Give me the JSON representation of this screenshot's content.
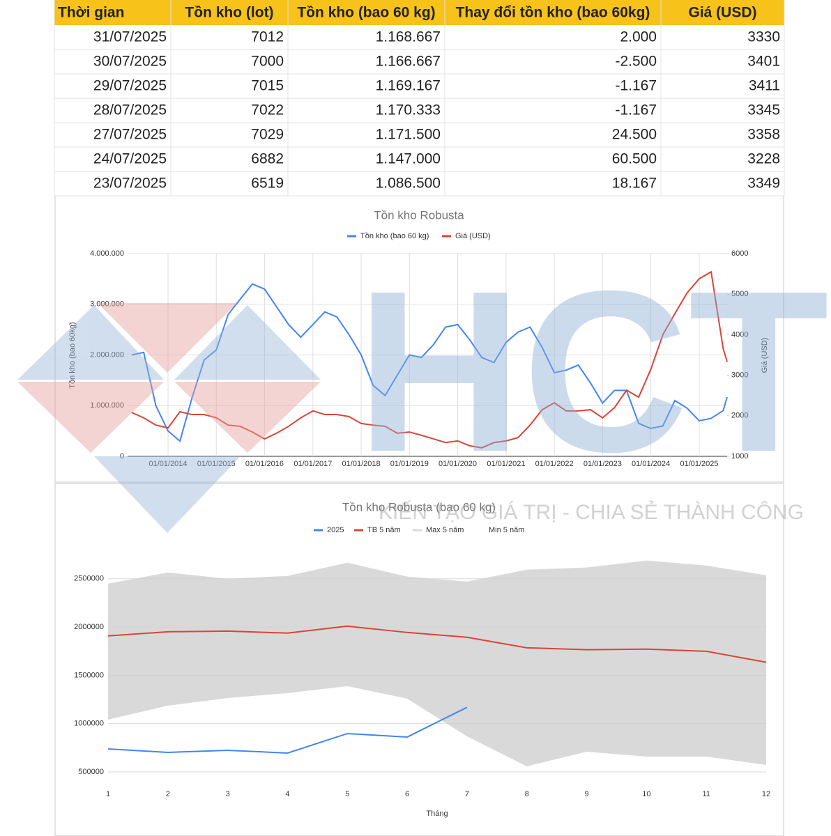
{
  "table": {
    "header": [
      "Thời gian",
      "Tồn kho (lot)",
      "Tồn kho (bao 60 kg)",
      "Thay đổi tồn kho (bao 60kg)",
      "Giá (USD)"
    ],
    "rows": [
      [
        "31/07/2025",
        "7012",
        "1.168.667",
        "2.000",
        "3330"
      ],
      [
        "30/07/2025",
        "7000",
        "1.166.667",
        "-2.500",
        "3401"
      ],
      [
        "29/07/2025",
        "7015",
        "1.169.167",
        "-1.167",
        "3411"
      ],
      [
        "28/07/2025",
        "7022",
        "1.170.333",
        "-1.167",
        "3345"
      ],
      [
        "27/07/2025",
        "7029",
        "1.171.500",
        "24.500",
        "3358"
      ],
      [
        "24/07/2025",
        "6882",
        "1.147.000",
        "60.500",
        "3228"
      ],
      [
        "23/07/2025",
        "6519",
        "1.086.500",
        "18.167",
        "3349"
      ]
    ]
  },
  "chart_data": [
    {
      "type": "line",
      "title": "Tồn kho Robusta",
      "y_label": "Tồn kho (bao 60kg)",
      "y2_label": "Giá (USD)",
      "grid": true,
      "legend": "top",
      "x": [
        "01/04/2013",
        "01/07/2013",
        "01/10/2013",
        "01/01/2014",
        "01/04/2014",
        "01/07/2014",
        "01/10/2014",
        "01/01/2015",
        "01/04/2015",
        "01/07/2015",
        "01/10/2015",
        "01/01/2016",
        "01/04/2016",
        "01/07/2016",
        "01/10/2016",
        "01/01/2017",
        "01/04/2017",
        "01/07/2017",
        "01/10/2017",
        "01/01/2018",
        "01/04/2018",
        "01/07/2018",
        "01/10/2018",
        "01/01/2019",
        "01/04/2019",
        "01/07/2019",
        "01/10/2019",
        "01/01/2020",
        "01/04/2020",
        "01/07/2020",
        "01/10/2020",
        "01/01/2021",
        "01/04/2021",
        "01/07/2021",
        "01/10/2021",
        "01/01/2022",
        "01/04/2022",
        "01/07/2022",
        "01/10/2022",
        "01/01/2023",
        "01/04/2023",
        "01/07/2023",
        "01/10/2023",
        "01/01/2024",
        "01/04/2024",
        "01/07/2024",
        "01/10/2024",
        "01/01/2025",
        "01/04/2025",
        "01/07/2025",
        "31/07/2025"
      ],
      "xlim": [
        "01/03/2013",
        "31/07/2025"
      ],
      "xticks": [
        "01/01/2014",
        "01/01/2015",
        "01/01/2016",
        "01/01/2017",
        "01/01/2018",
        "01/01/2019",
        "01/01/2020",
        "01/01/2021",
        "01/01/2022",
        "01/01/2023",
        "01/01/2024",
        "01/01/2025"
      ],
      "ylim": [
        0,
        4000000
      ],
      "yticks": [
        0,
        {
          "value": 1000000,
          "label": "1.000.000"
        },
        {
          "value": 2000000,
          "label": "2.000.000"
        },
        {
          "value": 3000000,
          "label": "3.000.000"
        },
        {
          "value": 4000000,
          "label": "4.000.000"
        }
      ],
      "y2lim": [
        1000,
        6000
      ],
      "y2ticks": [
        1000,
        2000,
        3000,
        4000,
        5000,
        6000
      ],
      "series": [
        {
          "name": "Tồn kho (bao 60 kg)",
          "color": "#4285f4",
          "values": [
            2000000,
            2050000,
            1000000,
            500000,
            300000,
            1150000,
            1900000,
            2100000,
            2800000,
            3100000,
            3400000,
            3300000,
            2950000,
            2600000,
            2350000,
            2600000,
            2850000,
            2750000,
            2400000,
            2000000,
            1400000,
            1200000,
            1600000,
            2000000,
            1950000,
            2200000,
            2550000,
            2600000,
            2300000,
            1950000,
            1850000,
            2250000,
            2450000,
            2550000,
            2150000,
            1650000,
            1700000,
            1800000,
            1450000,
            1050000,
            1300000,
            1300000,
            650000,
            550000,
            600000,
            1100000,
            950000,
            700000,
            750000,
            900000,
            1168667
          ]
        },
        {
          "name": "Giá (USD)",
          "color": "#db4437",
          "axis": "y2",
          "values": [
            2080,
            1950,
            1770,
            1700,
            2100,
            2030,
            2030,
            1950,
            1770,
            1740,
            1600,
            1430,
            1570,
            1740,
            1950,
            2120,
            2030,
            2030,
            1980,
            1810,
            1770,
            1740,
            1570,
            1600,
            1520,
            1430,
            1340,
            1380,
            1260,
            1210,
            1340,
            1380,
            1460,
            1770,
            2150,
            2320,
            2120,
            2120,
            2150,
            1950,
            2200,
            2630,
            2460,
            3150,
            4000,
            4520,
            5030,
            5380,
            5550,
            3660,
            3330
          ]
        }
      ]
    },
    {
      "type": "line",
      "title": "Tồn kho Robusta (bao 60 kg)",
      "x_label": "Tháng",
      "grid": true,
      "legend": "top",
      "categories": [
        1,
        2,
        3,
        4,
        5,
        6,
        7,
        8,
        9,
        10,
        11,
        12
      ],
      "ylim": [
        500000,
        2700000
      ],
      "yticks": [
        500000,
        1000000,
        1500000,
        2000000,
        2500000
      ],
      "series": [
        {
          "name": "2025",
          "color": "#4285f4",
          "values": [
            738000,
            702000,
            724000,
            695000,
            897000,
            861000,
            1168667,
            null,
            null,
            null,
            null,
            null
          ]
        },
        {
          "name": "TB 5 năm",
          "color": "#db4437",
          "values": [
            1908000,
            1951000,
            1958000,
            1937000,
            2009000,
            1944000,
            1894000,
            1785000,
            1765000,
            1771000,
            1749000,
            1635000
          ]
        },
        {
          "name": "Max 5 năm",
          "color": "#d9d9d9",
          "fill": "area",
          "values": [
            2449000,
            2565000,
            2500000,
            2529000,
            2666000,
            2522000,
            2471000,
            2594000,
            2616000,
            2688000,
            2637000,
            2536000
          ]
        },
        {
          "name": "Min 5 năm",
          "color": "#ffffff",
          "fill": "area",
          "values": [
            1042000,
            1186000,
            1265000,
            1316000,
            1388000,
            1258000,
            868000,
            558000,
            709000,
            659000,
            659000,
            572000
          ]
        }
      ]
    }
  ],
  "watermark": {
    "logo": "HCT",
    "slogan": "KIẾN TẠO GIÁ TRỊ - CHIA SẺ THÀNH CÔNG"
  }
}
